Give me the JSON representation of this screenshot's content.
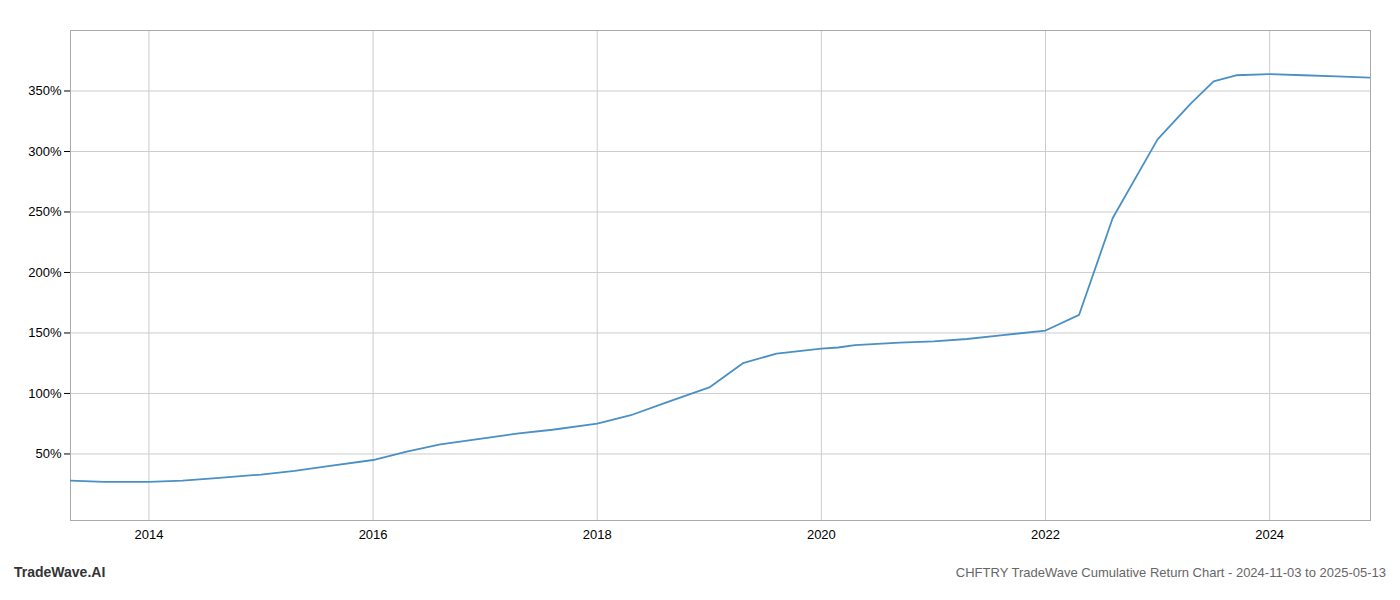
{
  "chart_data": {
    "type": "line",
    "title": "CHFTRY TradeWave Cumulative Return Chart - 2024-11-03 to 2025-05-13",
    "annotations": [
      "TradeWave.AI"
    ],
    "x": [
      2013.3,
      2013.6,
      2014.0,
      2014.3,
      2014.6,
      2015.0,
      2015.3,
      2015.6,
      2016.0,
      2016.3,
      2016.6,
      2017.0,
      2017.3,
      2017.6,
      2018.0,
      2018.3,
      2018.6,
      2019.0,
      2019.3,
      2019.6,
      2019.9,
      2020.0,
      2020.15,
      2020.3,
      2020.5,
      2020.7,
      2021.0,
      2021.3,
      2021.6,
      2022.0,
      2022.3,
      2022.6,
      2023.0,
      2023.3,
      2023.5,
      2023.7,
      2024.0,
      2024.3,
      2024.6,
      2024.9
    ],
    "values": [
      28,
      27,
      27,
      28,
      30,
      33,
      36,
      40,
      45,
      52,
      58,
      63,
      67,
      70,
      75,
      82,
      92,
      105,
      125,
      133,
      136,
      137,
      138,
      140,
      141,
      142,
      143,
      145,
      148,
      152,
      165,
      245,
      310,
      340,
      358,
      363,
      364,
      363,
      362,
      361
    ],
    "color": "#4a90c4",
    "xlim": [
      2013.3,
      2024.9
    ],
    "ylim": [
      -5,
      400
    ],
    "xticks": [
      2014,
      2016,
      2018,
      2020,
      2022,
      2024
    ],
    "yticks": [
      {
        "value": 50,
        "label": "50%"
      },
      {
        "value": 100,
        "label": "100%"
      },
      {
        "value": 150,
        "label": "150%"
      },
      {
        "value": 200,
        "label": "200%"
      },
      {
        "value": 250,
        "label": "250%"
      },
      {
        "value": 300,
        "label": "300%"
      },
      {
        "value": 350,
        "label": "350%"
      }
    ],
    "grid": true
  }
}
